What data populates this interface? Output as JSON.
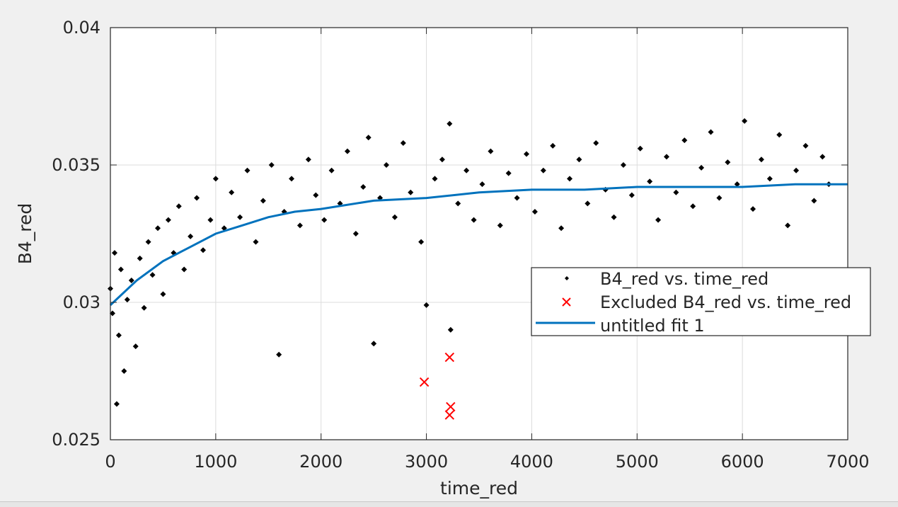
{
  "chart_data": {
    "type": "scatter",
    "title": "",
    "xlabel": "time_red",
    "ylabel": "B4_red",
    "xlim": [
      0,
      7000
    ],
    "ylim": [
      0.025,
      0.04
    ],
    "xticks": [
      0,
      1000,
      2000,
      3000,
      4000,
      5000,
      6000,
      7000
    ],
    "xtick_labels": [
      "0",
      "1000",
      "2000",
      "3000",
      "4000",
      "5000",
      "6000",
      "7000"
    ],
    "yticks": [
      0.025,
      0.03,
      0.035,
      0.04
    ],
    "ytick_labels": [
      "0.025",
      "0.03",
      "0.035",
      "0.04"
    ],
    "grid": true,
    "legend_position": "center-right",
    "series": [
      {
        "name": "B4_red vs. time_red",
        "kind": "points",
        "color": "#000000",
        "marker": "dot",
        "points": [
          [
            0,
            0.0305
          ],
          [
            20,
            0.0296
          ],
          [
            40,
            0.0318
          ],
          [
            60,
            0.0263
          ],
          [
            80,
            0.0288
          ],
          [
            100,
            0.0312
          ],
          [
            130,
            0.0275
          ],
          [
            160,
            0.0301
          ],
          [
            200,
            0.0308
          ],
          [
            240,
            0.0284
          ],
          [
            280,
            0.0316
          ],
          [
            320,
            0.0298
          ],
          [
            360,
            0.0322
          ],
          [
            400,
            0.031
          ],
          [
            450,
            0.0327
          ],
          [
            500,
            0.0303
          ],
          [
            550,
            0.033
          ],
          [
            600,
            0.0318
          ],
          [
            650,
            0.0335
          ],
          [
            700,
            0.0312
          ],
          [
            760,
            0.0324
          ],
          [
            820,
            0.0338
          ],
          [
            880,
            0.0319
          ],
          [
            950,
            0.033
          ],
          [
            1000,
            0.0345
          ],
          [
            1080,
            0.0327
          ],
          [
            1150,
            0.034
          ],
          [
            1230,
            0.0331
          ],
          [
            1300,
            0.0348
          ],
          [
            1380,
            0.0322
          ],
          [
            1450,
            0.0337
          ],
          [
            1530,
            0.035
          ],
          [
            1600,
            0.0281
          ],
          [
            1650,
            0.0333
          ],
          [
            1720,
            0.0345
          ],
          [
            1800,
            0.0328
          ],
          [
            1880,
            0.0352
          ],
          [
            1950,
            0.0339
          ],
          [
            2030,
            0.033
          ],
          [
            2100,
            0.0348
          ],
          [
            2180,
            0.0336
          ],
          [
            2250,
            0.0355
          ],
          [
            2330,
            0.0325
          ],
          [
            2400,
            0.0342
          ],
          [
            2450,
            0.036
          ],
          [
            2500,
            0.0285
          ],
          [
            2560,
            0.0338
          ],
          [
            2620,
            0.035
          ],
          [
            2700,
            0.0331
          ],
          [
            2780,
            0.0358
          ],
          [
            2850,
            0.034
          ],
          [
            2950,
            0.0322
          ],
          [
            3000,
            0.0299
          ],
          [
            3080,
            0.0345
          ],
          [
            3150,
            0.0352
          ],
          [
            3220,
            0.0365
          ],
          [
            3230,
            0.029
          ],
          [
            3300,
            0.0336
          ],
          [
            3380,
            0.0348
          ],
          [
            3450,
            0.033
          ],
          [
            3530,
            0.0343
          ],
          [
            3610,
            0.0355
          ],
          [
            3700,
            0.0328
          ],
          [
            3780,
            0.0347
          ],
          [
            3860,
            0.0338
          ],
          [
            3950,
            0.0354
          ],
          [
            4030,
            0.0333
          ],
          [
            4110,
            0.0348
          ],
          [
            4200,
            0.0357
          ],
          [
            4280,
            0.0327
          ],
          [
            4360,
            0.0345
          ],
          [
            4450,
            0.0352
          ],
          [
            4530,
            0.0336
          ],
          [
            4610,
            0.0358
          ],
          [
            4700,
            0.0341
          ],
          [
            4780,
            0.0331
          ],
          [
            4870,
            0.035
          ],
          [
            4950,
            0.0339
          ],
          [
            5030,
            0.0356
          ],
          [
            5120,
            0.0344
          ],
          [
            5200,
            0.033
          ],
          [
            5280,
            0.0353
          ],
          [
            5370,
            0.034
          ],
          [
            5450,
            0.0359
          ],
          [
            5530,
            0.0335
          ],
          [
            5610,
            0.0349
          ],
          [
            5700,
            0.0362
          ],
          [
            5780,
            0.0338
          ],
          [
            5860,
            0.0351
          ],
          [
            5950,
            0.0343
          ],
          [
            6020,
            0.0366
          ],
          [
            6100,
            0.0334
          ],
          [
            6180,
            0.0352
          ],
          [
            6260,
            0.0345
          ],
          [
            6350,
            0.0361
          ],
          [
            6430,
            0.0328
          ],
          [
            6510,
            0.0348
          ],
          [
            6600,
            0.0357
          ],
          [
            6680,
            0.0337
          ],
          [
            6760,
            0.0353
          ],
          [
            6820,
            0.0343
          ]
        ]
      },
      {
        "name": "Excluded B4_red vs. time_red",
        "kind": "points",
        "color": "#ff0000",
        "marker": "x",
        "points": [
          [
            2980,
            0.0271
          ],
          [
            3220,
            0.028
          ],
          [
            3230,
            0.0262
          ],
          [
            3220,
            0.0259
          ]
        ]
      },
      {
        "name": "untitled fit 1",
        "kind": "line",
        "color": "#0072bd",
        "points": [
          [
            0,
            0.0299
          ],
          [
            250,
            0.0308
          ],
          [
            500,
            0.0315
          ],
          [
            750,
            0.032
          ],
          [
            1000,
            0.0325
          ],
          [
            1250,
            0.0328
          ],
          [
            1500,
            0.0331
          ],
          [
            1750,
            0.0333
          ],
          [
            2000,
            0.0334
          ],
          [
            2500,
            0.0337
          ],
          [
            3000,
            0.0338
          ],
          [
            3500,
            0.034
          ],
          [
            4000,
            0.0341
          ],
          [
            4500,
            0.0341
          ],
          [
            5000,
            0.0342
          ],
          [
            5500,
            0.0342
          ],
          [
            6000,
            0.0342
          ],
          [
            6500,
            0.0343
          ],
          [
            7000,
            0.0343
          ]
        ]
      }
    ]
  }
}
